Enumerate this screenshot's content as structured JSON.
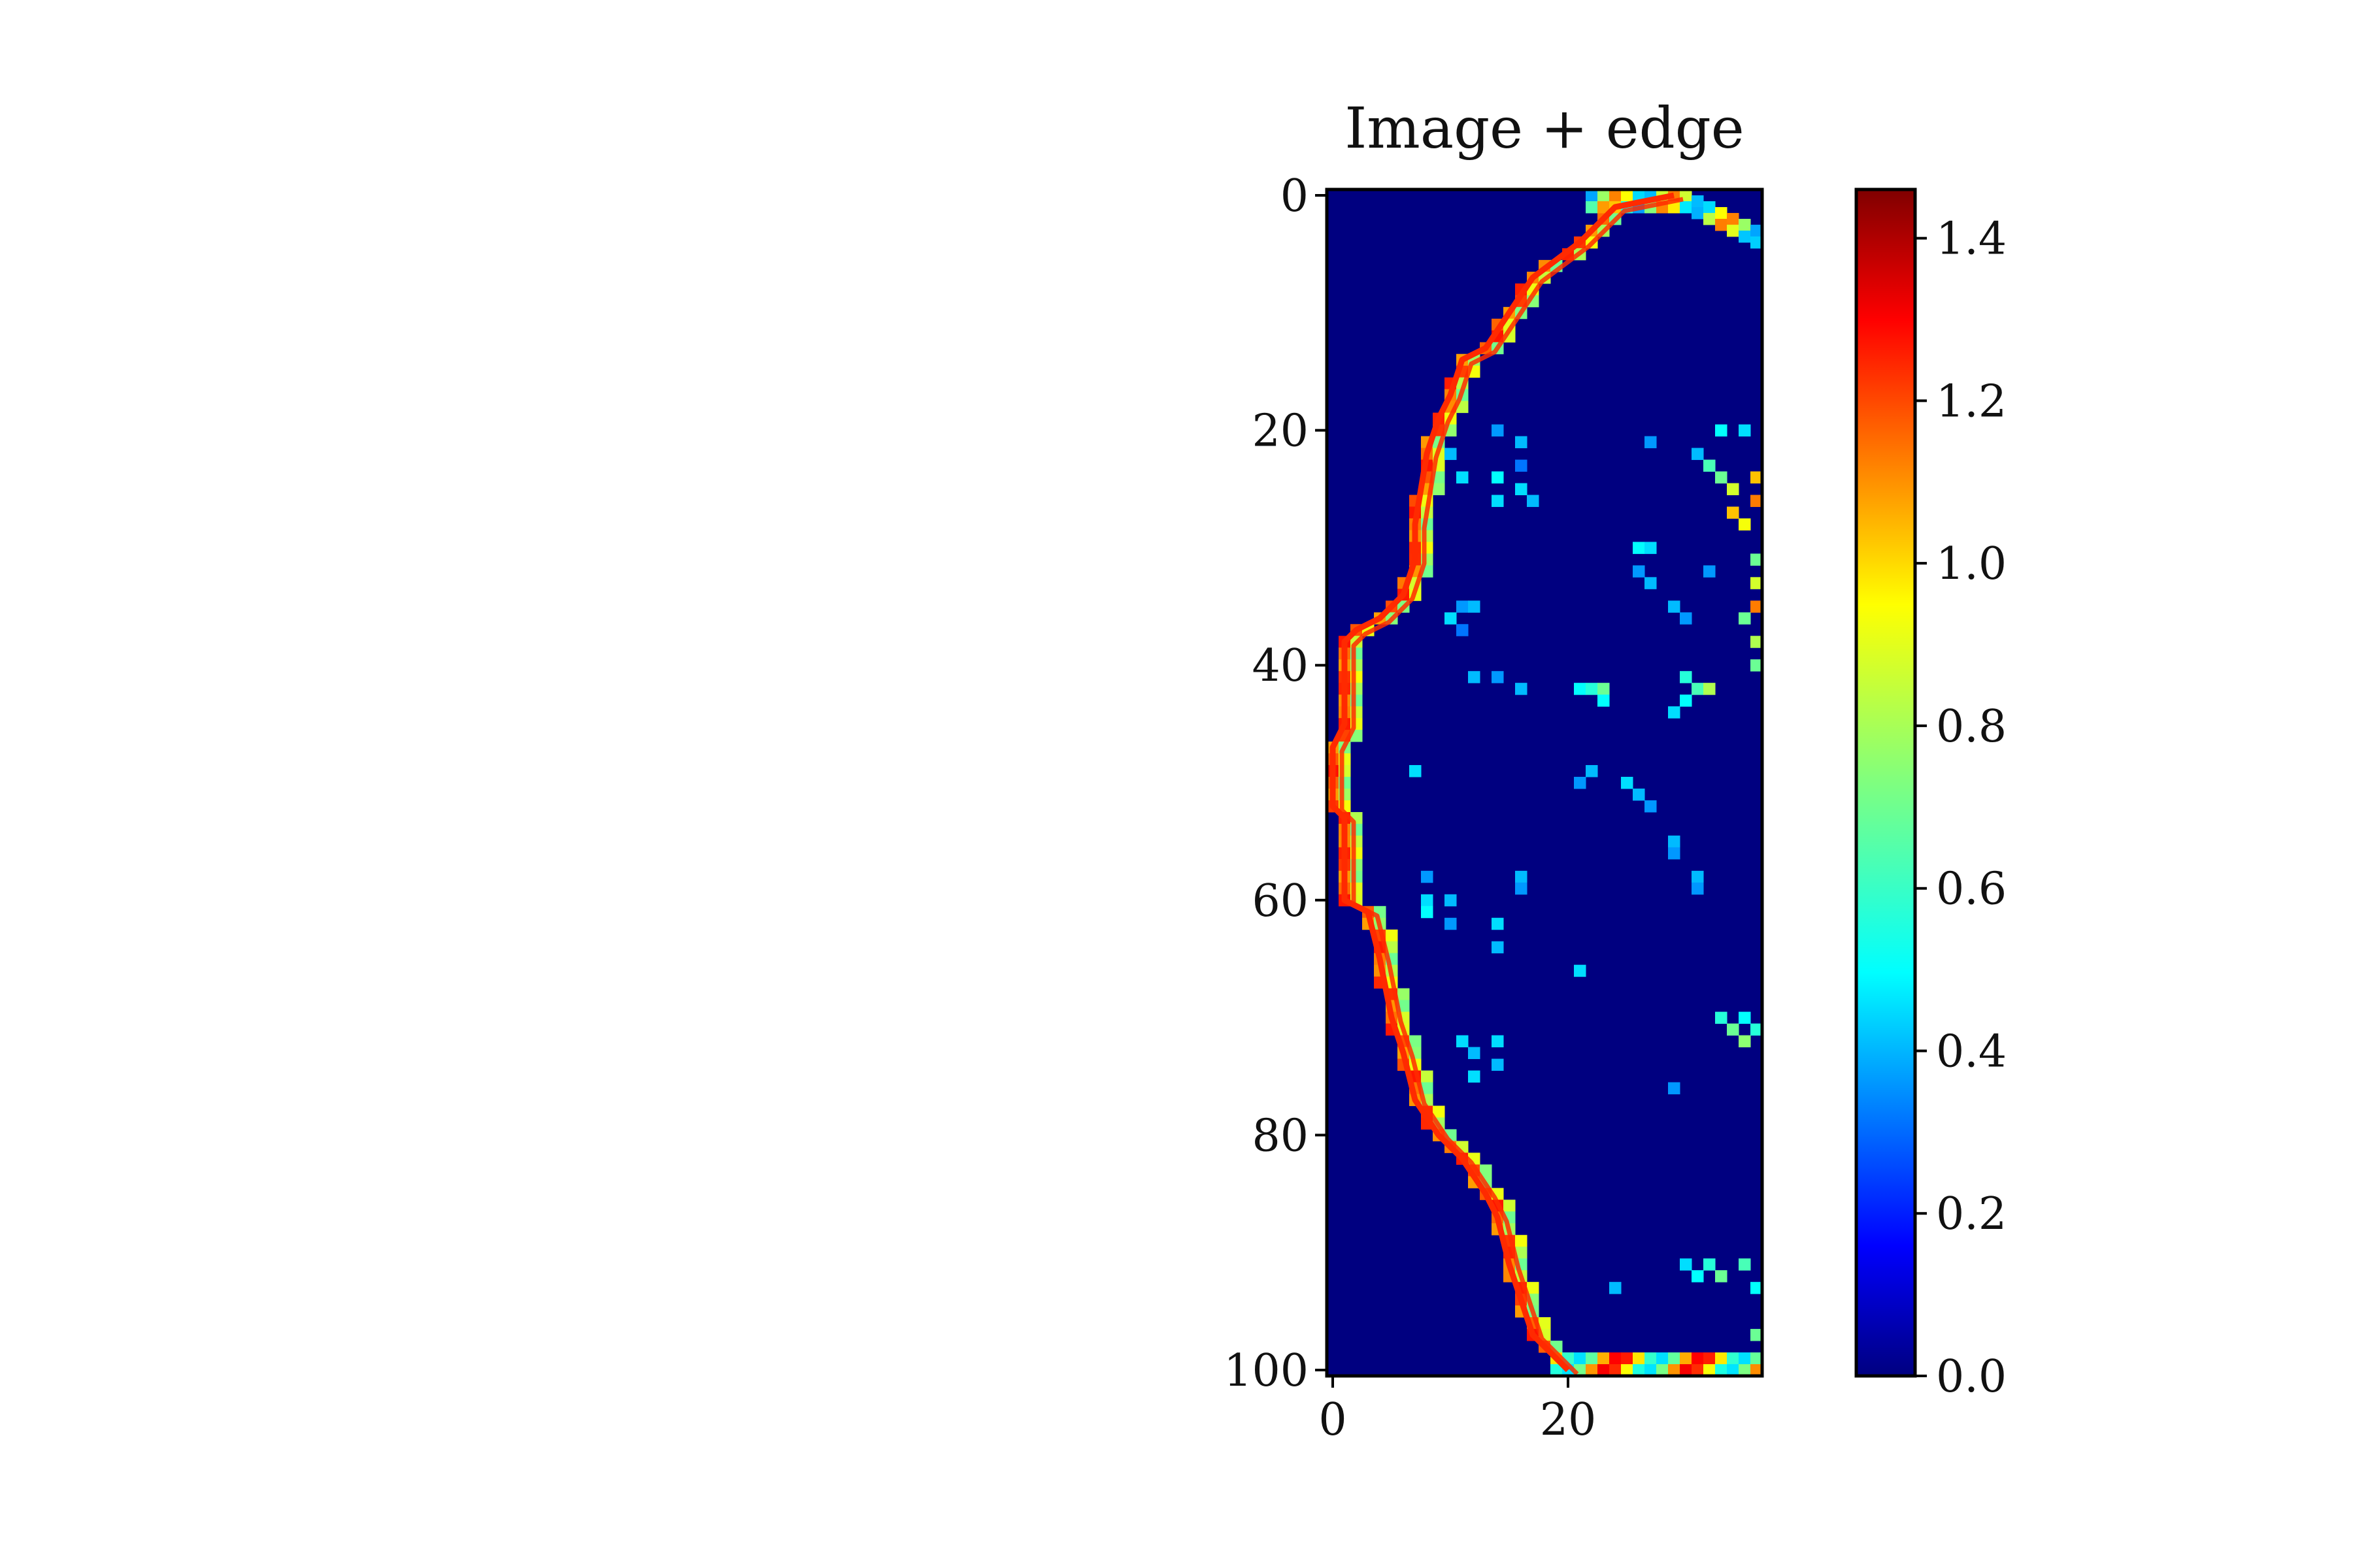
{
  "chart_data": {
    "type": "heatmap",
    "title": "Image + edge",
    "xlabel": "",
    "ylabel": "",
    "image": {
      "rows": 101,
      "cols": 37,
      "x_extent": [
        -0.5,
        36.5
      ],
      "y_extent": [
        -0.5,
        100.5
      ],
      "x_ticks": [
        0,
        20
      ],
      "x_tick_labels": [
        "0",
        "20"
      ],
      "y_ticks": [
        0,
        20,
        40,
        60,
        80,
        100
      ],
      "y_tick_labels": [
        "0",
        "20",
        "40",
        "60",
        "80",
        "100"
      ],
      "background_value": 0.0,
      "boundary_value": 1.0
    },
    "colorbar": {
      "colormap": "jet",
      "vmin": 0.0,
      "vmax": 1.46,
      "ticks": [
        0.0,
        0.2,
        0.4,
        0.6,
        0.8,
        1.0,
        1.2,
        1.4
      ],
      "tick_labels": [
        "0.0",
        "0.2",
        "0.4",
        "0.6",
        "0.8",
        "1.0",
        "1.2",
        "1.4"
      ]
    },
    "edge_overlay": {
      "color": "#ff2a00",
      "description_points": [
        [
          29,
          0
        ],
        [
          24,
          1
        ],
        [
          21,
          4
        ],
        [
          17,
          7
        ],
        [
          15,
          10
        ],
        [
          13,
          13
        ],
        [
          11,
          14
        ],
        [
          10,
          17
        ],
        [
          9,
          19
        ],
        [
          8,
          22
        ],
        [
          7,
          28
        ],
        [
          7,
          31
        ],
        [
          6,
          34
        ],
        [
          4,
          36
        ],
        [
          2,
          37
        ],
        [
          1,
          38
        ],
        [
          1,
          45
        ],
        [
          0,
          47
        ],
        [
          0,
          52
        ],
        [
          1,
          53
        ],
        [
          1,
          60
        ],
        [
          3,
          61
        ],
        [
          4,
          65
        ],
        [
          5,
          70
        ],
        [
          6,
          73
        ],
        [
          7,
          77
        ],
        [
          9,
          80
        ],
        [
          11,
          82
        ],
        [
          13,
          85
        ],
        [
          14,
          87
        ],
        [
          15,
          91
        ],
        [
          16,
          94
        ],
        [
          17,
          97
        ],
        [
          19,
          99
        ],
        [
          20,
          100
        ]
      ]
    },
    "interior_speckles": [
      [
        10,
        22,
        0.45
      ],
      [
        11,
        24,
        0.5
      ],
      [
        14,
        20,
        0.4
      ],
      [
        14,
        24,
        0.55
      ],
      [
        14,
        26,
        0.5
      ],
      [
        16,
        21,
        0.45
      ],
      [
        16,
        23,
        0.35
      ],
      [
        16,
        25,
        0.5
      ],
      [
        17,
        26,
        0.45
      ],
      [
        27,
        21,
        0.4
      ],
      [
        31,
        22,
        0.45
      ],
      [
        32,
        23,
        0.65
      ],
      [
        33,
        24,
        0.7
      ],
      [
        34,
        25,
        0.85
      ],
      [
        34,
        27,
        1.0
      ],
      [
        35,
        28,
        0.9
      ],
      [
        36,
        24,
        1.0
      ],
      [
        36,
        26,
        1.1
      ],
      [
        33,
        20,
        0.55
      ],
      [
        35,
        20,
        0.5
      ],
      [
        26,
        30,
        0.55
      ],
      [
        27,
        30,
        0.5
      ],
      [
        26,
        32,
        0.4
      ],
      [
        27,
        33,
        0.45
      ],
      [
        32,
        32,
        0.4
      ],
      [
        36,
        31,
        0.7
      ],
      [
        36,
        33,
        0.85
      ],
      [
        36,
        35,
        1.1
      ],
      [
        35,
        36,
        0.7
      ],
      [
        36,
        38,
        0.8
      ],
      [
        36,
        40,
        0.7
      ],
      [
        11,
        35,
        0.4
      ],
      [
        12,
        35,
        0.45
      ],
      [
        10,
        36,
        0.5
      ],
      [
        11,
        37,
        0.35
      ],
      [
        29,
        35,
        0.45
      ],
      [
        30,
        36,
        0.4
      ],
      [
        12,
        41,
        0.45
      ],
      [
        14,
        41,
        0.4
      ],
      [
        16,
        42,
        0.45
      ],
      [
        21,
        42,
        0.55
      ],
      [
        22,
        42,
        0.6
      ],
      [
        23,
        42,
        0.7
      ],
      [
        23,
        43,
        0.55
      ],
      [
        30,
        41,
        0.6
      ],
      [
        31,
        42,
        0.65
      ],
      [
        32,
        42,
        0.8
      ],
      [
        30,
        43,
        0.55
      ],
      [
        29,
        44,
        0.5
      ],
      [
        22,
        49,
        0.45
      ],
      [
        21,
        50,
        0.4
      ],
      [
        25,
        50,
        0.5
      ],
      [
        26,
        51,
        0.45
      ],
      [
        27,
        52,
        0.4
      ],
      [
        29,
        55,
        0.45
      ],
      [
        29,
        56,
        0.4
      ],
      [
        31,
        58,
        0.45
      ],
      [
        31,
        59,
        0.4
      ],
      [
        7,
        49,
        0.5
      ],
      [
        8,
        58,
        0.4
      ],
      [
        16,
        58,
        0.45
      ],
      [
        16,
        59,
        0.4
      ],
      [
        8,
        60,
        0.5
      ],
      [
        10,
        60,
        0.45
      ],
      [
        8,
        61,
        0.55
      ],
      [
        10,
        62,
        0.4
      ],
      [
        14,
        62,
        0.5
      ],
      [
        14,
        64,
        0.45
      ],
      [
        21,
        66,
        0.5
      ],
      [
        33,
        70,
        0.6
      ],
      [
        34,
        71,
        0.7
      ],
      [
        35,
        72,
        0.75
      ],
      [
        36,
        71,
        0.6
      ],
      [
        35,
        70,
        0.55
      ],
      [
        11,
        72,
        0.5
      ],
      [
        12,
        73,
        0.45
      ],
      [
        14,
        72,
        0.5
      ],
      [
        14,
        74,
        0.45
      ],
      [
        12,
        75,
        0.5
      ],
      [
        29,
        76,
        0.4
      ],
      [
        30,
        91,
        0.5
      ],
      [
        31,
        92,
        0.55
      ],
      [
        32,
        91,
        0.6
      ],
      [
        33,
        92,
        0.7
      ],
      [
        35,
        91,
        0.65
      ],
      [
        36,
        93,
        0.55
      ],
      [
        24,
        93,
        0.45
      ],
      [
        36,
        97,
        0.7
      ]
    ]
  }
}
